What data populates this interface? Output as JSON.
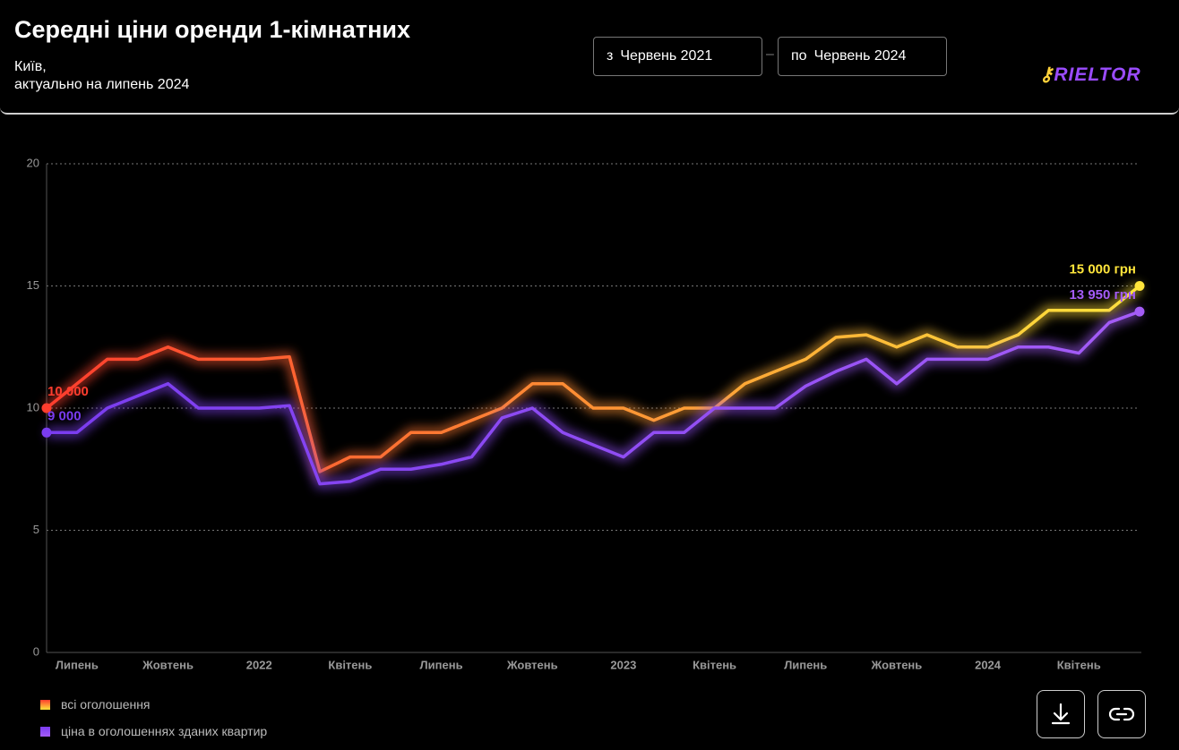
{
  "chart_data": {
    "type": "line",
    "title": "Середні ціни оренди 1-кімнатних",
    "subtitle": [
      "Київ,",
      "актуально на липень 2024"
    ],
    "controls": {
      "from_prefix": "з",
      "from": "Червень 2021",
      "to_prefix": "по",
      "to": "Червень 2024"
    },
    "logo": "RIELTOR",
    "categories": [
      null,
      "Липень",
      null,
      null,
      "Жовтень",
      null,
      null,
      "2022",
      null,
      null,
      "Квітень",
      null,
      null,
      "Липень",
      null,
      null,
      "Жовтень",
      null,
      null,
      "2023",
      null,
      null,
      "Квітень",
      null,
      null,
      "Липень",
      null,
      null,
      "Жовтень",
      null,
      null,
      "2024",
      null,
      null,
      "Квітень",
      null,
      null
    ],
    "ylim": [
      0,
      20
    ],
    "yticks": [
      0,
      5,
      10,
      15,
      20
    ],
    "grid": true,
    "series": [
      {
        "name": "всі оголошення",
        "color": "#ff9a2e",
        "gradient": [
          "#ff3d2e",
          "#ffe53b"
        ],
        "values": [
          10,
          11,
          12,
          12,
          12.5,
          12,
          12,
          12,
          12.1,
          7.4,
          8,
          8,
          9,
          9,
          9.5,
          10,
          11,
          11,
          10,
          10,
          9.5,
          10,
          10,
          11,
          11.5,
          12,
          12.9,
          13,
          12.5,
          13,
          12.5,
          12.5,
          13,
          14,
          14,
          14,
          15
        ],
        "value_labels": [
          "10 000",
          null,
          null,
          null,
          null,
          null,
          null,
          null,
          null,
          null,
          null,
          null,
          null,
          null,
          null,
          null,
          null,
          null,
          null,
          null,
          null,
          null,
          null,
          null,
          null,
          null,
          null,
          null,
          null,
          null,
          null,
          null,
          null,
          null,
          null,
          null,
          "15 000 грн"
        ]
      },
      {
        "name": "ціна в оголошеннях зданих квартир",
        "color": "#8a3ff5",
        "gradient": [
          "#7a3cf0",
          "#a45cf7"
        ],
        "values": [
          9,
          9,
          10,
          10.5,
          11,
          10,
          10,
          10,
          10.1,
          6.9,
          7,
          7.5,
          7.5,
          7.7,
          8,
          9.6,
          10,
          9,
          8.5,
          8,
          9,
          9,
          10,
          10,
          10,
          10.9,
          11.5,
          12,
          11,
          12,
          12,
          12,
          12.5,
          12.5,
          12.25,
          13.5,
          13.95
        ],
        "value_labels": [
          "9 000",
          null,
          null,
          null,
          null,
          null,
          null,
          null,
          null,
          null,
          null,
          null,
          null,
          null,
          null,
          null,
          null,
          null,
          null,
          null,
          null,
          null,
          null,
          null,
          null,
          null,
          null,
          null,
          null,
          null,
          null,
          null,
          null,
          null,
          null,
          null,
          "13 950 грн"
        ]
      }
    ]
  }
}
